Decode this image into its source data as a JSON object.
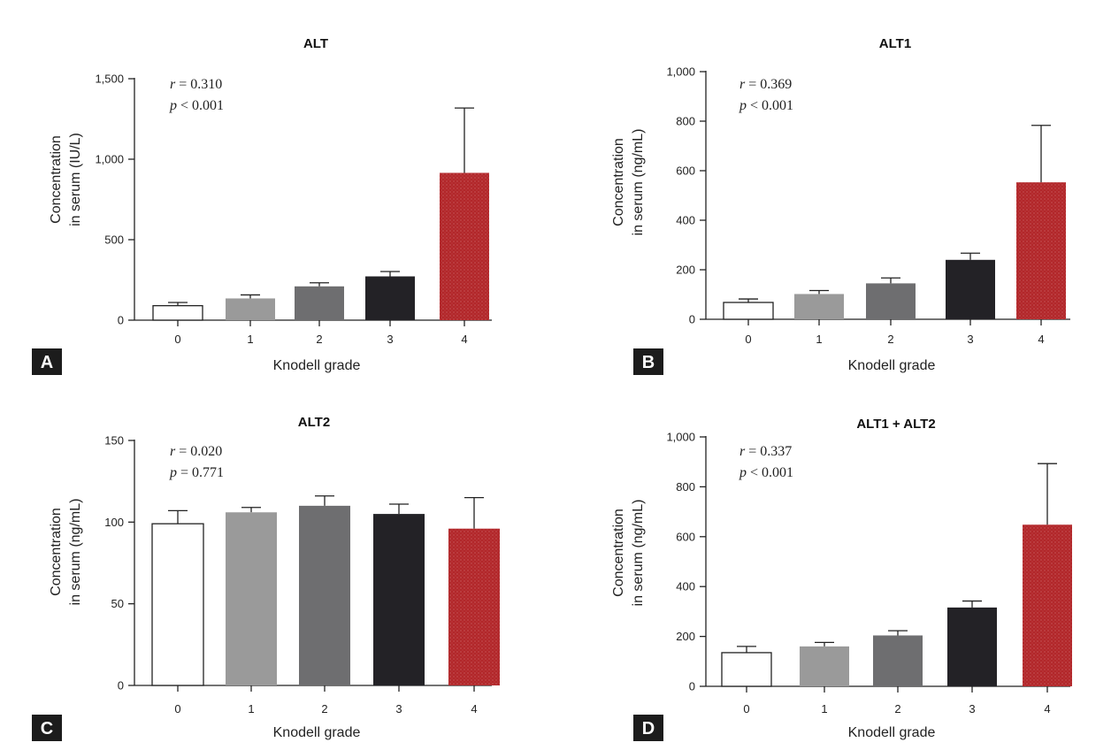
{
  "colors": {
    "grade_0": "#ffffff",
    "grade_1": "#9a9a9a",
    "grade_2": "#6e6e70",
    "grade_3": "#232226",
    "grade_4": "#b2272a",
    "axis": "#222222",
    "panel_tag_bg": "#1c1c1c"
  },
  "chart_data": [
    {
      "type": "bar",
      "panel": "A",
      "title": "ALT",
      "xlabel": "Knodell grade",
      "ylabel": [
        "Concentration",
        "in serum (IU/L)"
      ],
      "categories": [
        "0",
        "1",
        "2",
        "3",
        "4"
      ],
      "values": [
        90,
        135,
        210,
        272,
        915
      ],
      "error_upper": [
        110,
        157,
        232,
        302,
        1318
      ],
      "ylim": [
        0,
        1500
      ],
      "yticks": [
        0,
        500,
        1000,
        1500
      ],
      "ytick_labels": [
        "0",
        "500",
        "1,000",
        "1,500"
      ],
      "stats": {
        "r_label": "r",
        "r_text": " = 0.310",
        "p_label": "p",
        "p_text": " < 0.001"
      }
    },
    {
      "type": "bar",
      "panel": "B",
      "title": "ALT1",
      "xlabel": "Knodell grade",
      "ylabel": [
        "Concentration",
        "in serum (ng/mL)"
      ],
      "categories": [
        "0",
        "1",
        "2",
        "3",
        "4"
      ],
      "values": [
        68,
        102,
        145,
        240,
        553
      ],
      "error_upper": [
        82,
        116,
        167,
        267,
        783
      ],
      "ylim": [
        0,
        1000
      ],
      "yticks": [
        0,
        200,
        400,
        600,
        800,
        1000
      ],
      "ytick_labels": [
        "0",
        "200",
        "400",
        "600",
        "800",
        "1,000"
      ],
      "stats": {
        "r_label": "r",
        "r_text": " = 0.369",
        "p_label": "p",
        "p_text": " < 0.001"
      }
    },
    {
      "type": "bar",
      "panel": "C",
      "title": "ALT2",
      "xlabel": "Knodell grade",
      "ylabel": [
        "Concentration",
        "in serum (ng/mL)"
      ],
      "categories": [
        "0",
        "1",
        "2",
        "3",
        "4"
      ],
      "values": [
        99,
        106,
        110,
        105,
        96
      ],
      "error_upper": [
        107,
        109,
        116,
        111,
        115
      ],
      "ylim": [
        0,
        150
      ],
      "yticks": [
        0,
        50,
        100,
        150
      ],
      "ytick_labels": [
        "0",
        "50",
        "100",
        "150"
      ],
      "stats": {
        "r_label": "r",
        "r_text": " = 0.020",
        "p_label": "p",
        "p_text": " = 0.771"
      }
    },
    {
      "type": "bar",
      "panel": "D",
      "title": "ALT1 + ALT2",
      "xlabel": "Knodell grade",
      "ylabel": [
        "Concentration",
        "in serum (ng/mL)"
      ],
      "categories": [
        "0",
        "1",
        "2",
        "3",
        "4"
      ],
      "values": [
        135,
        160,
        204,
        316,
        648
      ],
      "error_upper": [
        160,
        176,
        223,
        342,
        893
      ],
      "ylim": [
        0,
        1000
      ],
      "yticks": [
        0,
        200,
        400,
        600,
        800,
        1000
      ],
      "ytick_labels": [
        "0",
        "200",
        "400",
        "600",
        "800",
        "1,000"
      ],
      "stats": {
        "r_label": "r",
        "r_text": " = 0.337",
        "p_label": "p",
        "p_text": " < 0.001"
      }
    }
  ]
}
